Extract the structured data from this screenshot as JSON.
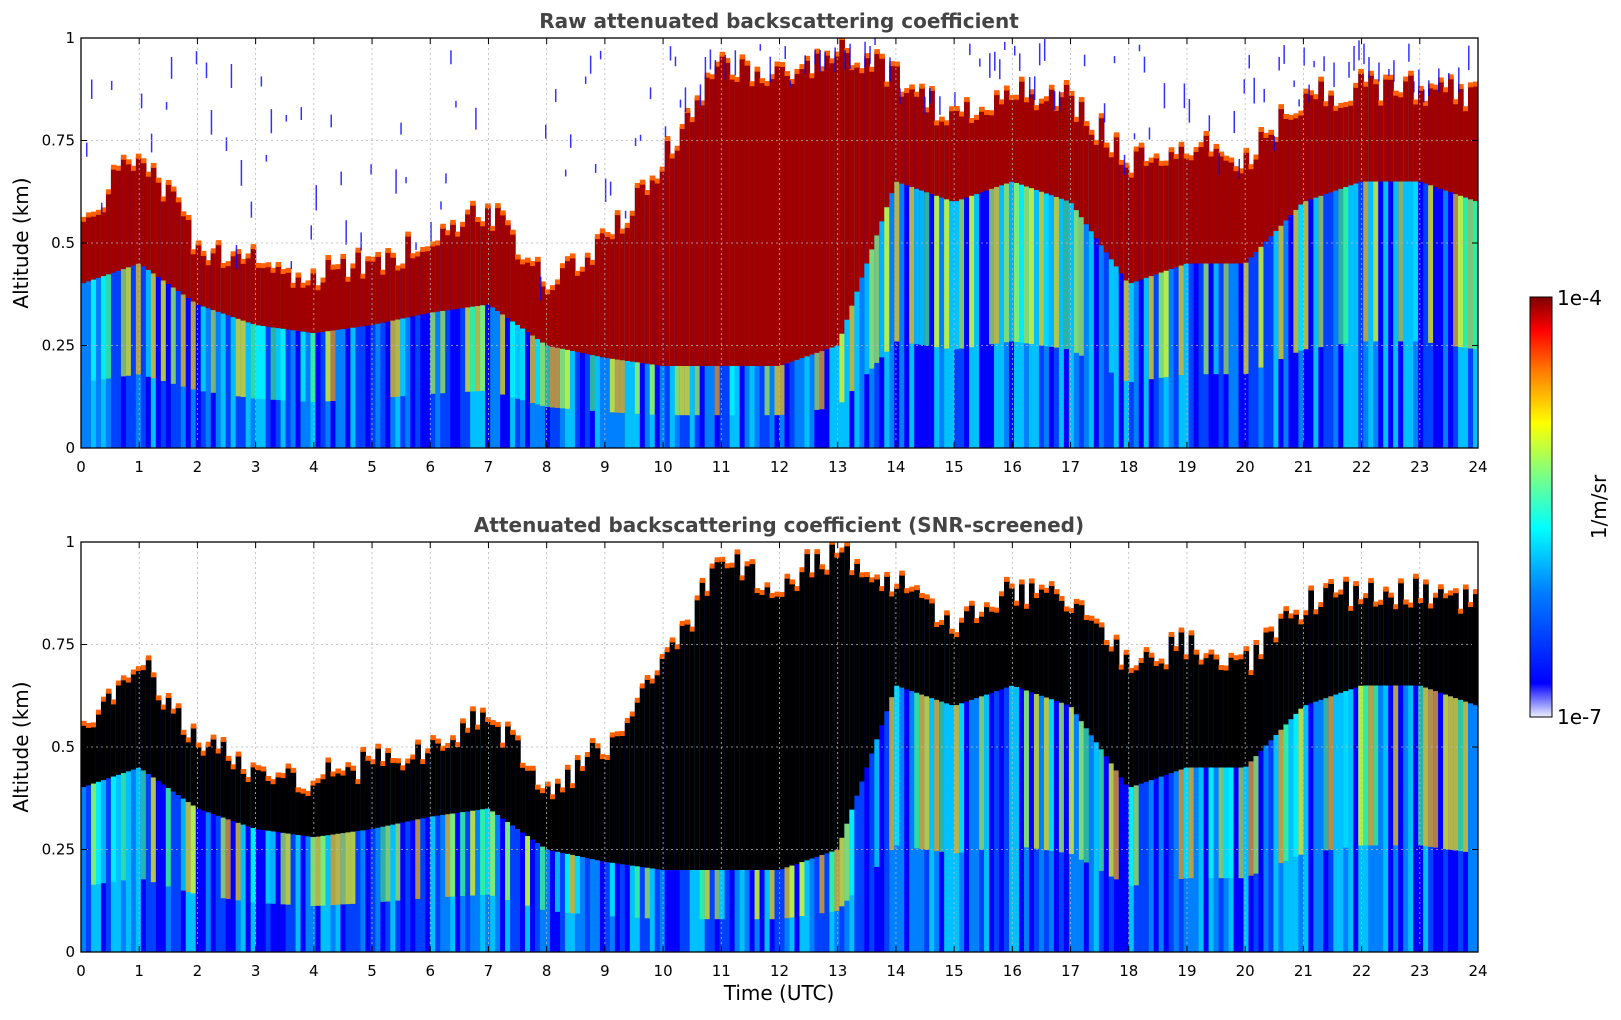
{
  "chart_data": [
    {
      "type": "heatmap",
      "title": "Raw attenuated backscattering coefficient",
      "xlabel": "",
      "ylabel": "Altitude (km)",
      "xlim": [
        0,
        24
      ],
      "ylim": [
        0,
        1
      ],
      "x_ticks": [
        "0",
        "1",
        "2",
        "3",
        "4",
        "5",
        "6",
        "7",
        "8",
        "9",
        "10",
        "11",
        "12",
        "13",
        "14",
        "15",
        "16",
        "17",
        "18",
        "19",
        "20",
        "21",
        "22",
        "23",
        "24"
      ],
      "y_ticks": [
        "0",
        "0.25",
        "0.5",
        "0.75",
        "1"
      ],
      "grid": true,
      "layer_top_km": [
        [
          0,
          0.55
        ],
        [
          1,
          0.72
        ],
        [
          2,
          0.5
        ],
        [
          3,
          0.45
        ],
        [
          4,
          0.42
        ],
        [
          5,
          0.46
        ],
        [
          6,
          0.5
        ],
        [
          7,
          0.58
        ],
        [
          8,
          0.4
        ],
        [
          9,
          0.5
        ],
        [
          10,
          0.7
        ],
        [
          11,
          0.95
        ],
        [
          12,
          0.9
        ],
        [
          13,
          0.98
        ],
        [
          14,
          0.9
        ],
        [
          15,
          0.8
        ],
        [
          16,
          0.88
        ],
        [
          17,
          0.85
        ],
        [
          18,
          0.7
        ],
        [
          19,
          0.75
        ],
        [
          20,
          0.7
        ],
        [
          21,
          0.85
        ],
        [
          22,
          0.88
        ],
        [
          23,
          0.88
        ],
        [
          24,
          0.85
        ]
      ],
      "layer_base_km": [
        [
          0,
          0.4
        ],
        [
          1,
          0.45
        ],
        [
          2,
          0.35
        ],
        [
          3,
          0.3
        ],
        [
          4,
          0.28
        ],
        [
          5,
          0.3
        ],
        [
          6,
          0.33
        ],
        [
          7,
          0.35
        ],
        [
          8,
          0.25
        ],
        [
          9,
          0.22
        ],
        [
          10,
          0.2
        ],
        [
          11,
          0.2
        ],
        [
          12,
          0.2
        ],
        [
          13,
          0.25
        ],
        [
          14,
          0.65
        ],
        [
          15,
          0.6
        ],
        [
          16,
          0.65
        ],
        [
          17,
          0.6
        ],
        [
          18,
          0.4
        ],
        [
          19,
          0.45
        ],
        [
          20,
          0.45
        ],
        [
          21,
          0.6
        ],
        [
          22,
          0.65
        ],
        [
          23,
          0.65
        ],
        [
          24,
          0.6
        ]
      ]
    },
    {
      "type": "heatmap",
      "title": "Attenuated backscattering coefficient (SNR-screened)",
      "xlabel": "Time (UTC)",
      "ylabel": "Altitude (km)",
      "xlim": [
        0,
        24
      ],
      "ylim": [
        0,
        1
      ],
      "x_ticks": [
        "0",
        "1",
        "2",
        "3",
        "4",
        "5",
        "6",
        "7",
        "8",
        "9",
        "10",
        "11",
        "12",
        "13",
        "14",
        "15",
        "16",
        "17",
        "18",
        "19",
        "20",
        "21",
        "22",
        "23",
        "24"
      ],
      "y_ticks": [
        "0",
        "0.25",
        "0.5",
        "0.75",
        "1"
      ],
      "grid": true
    }
  ],
  "colorbar": {
    "max_label": "1e-4",
    "min_label": "1e-7",
    "units": "1/m/sr",
    "colormap": [
      "#ffffff",
      "#0000ff",
      "#0080ff",
      "#00ffff",
      "#80ff80",
      "#ffff00",
      "#ff8000",
      "#ff0000",
      "#800000"
    ]
  }
}
